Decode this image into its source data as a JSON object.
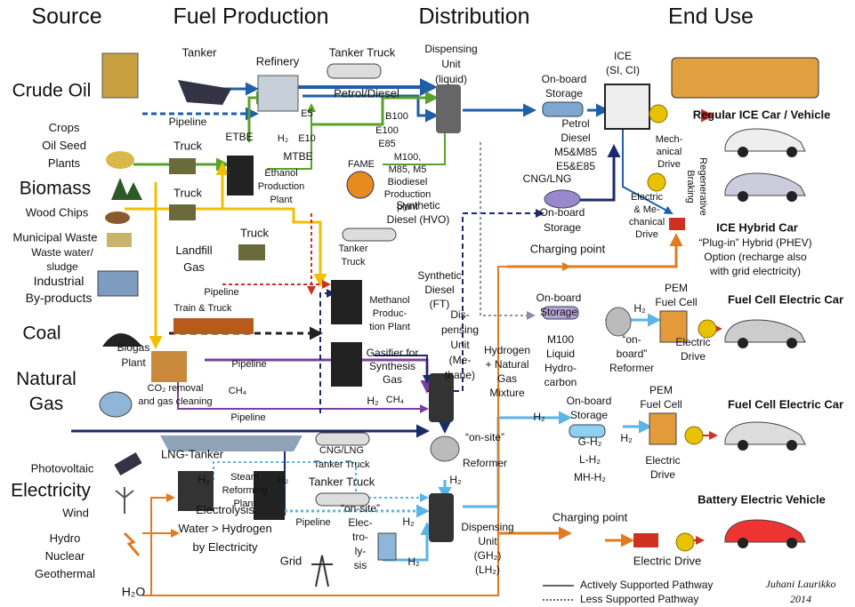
{
  "headers": [
    "Source",
    "Fuel Production",
    "Distribution",
    "End Use"
  ],
  "source": {
    "crude_oil": "Crude Oil",
    "crops": [
      "Crops",
      "Oil Seed",
      "Plants"
    ],
    "biomass": "Biomass",
    "wood_chips": "Wood Chips",
    "municipal_waste": "Municipal Waste",
    "waste_water": [
      "Waste water/",
      "sludge"
    ],
    "industrial": [
      "Industrial",
      "By-products"
    ],
    "coal": "Coal",
    "natural_gas": [
      "Natural",
      "Gas"
    ],
    "photovoltaic": "Photovoltaic",
    "electricity": "Electricity",
    "wind": "Wind",
    "hydro": [
      "Hydro",
      "Nuclear",
      "Geothermal"
    ],
    "water": "H₂O"
  },
  "production": {
    "tanker": "Tanker",
    "refinery": "Refinery",
    "pipeline_oil": "Pipeline",
    "truck_crops": "Truck",
    "etbe": "ETBE",
    "ethanol_plant": [
      "Ethanol",
      "Production",
      "Plant"
    ],
    "truck_wood": "Truck",
    "mtbe": "MTBE",
    "e5": "E5",
    "e10": "E10",
    "h2_refinery": "H₂",
    "tanker_truck": "Tanker Truck",
    "petrol_diesel": "Petrol/Diesel",
    "b100": "B100",
    "e100": [
      "E100",
      "E85"
    ],
    "biodiesel_plant": [
      "M100,",
      "M85, M5",
      "Biodiesel",
      "Production",
      "plant"
    ],
    "fame": "FAME",
    "hvo": [
      "Synthetic",
      "Diesel (HVO)"
    ],
    "truck_waste": "Truck",
    "tanker_truck_2": [
      "Tanker",
      "Truck"
    ],
    "landfill": [
      "Landfill",
      "Gas"
    ],
    "pipeline_industrial": "Pipeline",
    "train_truck": "Train & Truck",
    "methanol_plant": [
      "Methanol",
      "Produc-",
      "tion Plant"
    ],
    "ft_diesel": [
      "Synthetic",
      "Diesel",
      "(FT)"
    ],
    "biogas_plant": [
      "Biogas",
      "Plant"
    ],
    "co2_removal": [
      "CO₂ removal",
      "and gas cleaning"
    ],
    "ch4_biogas": "CH₄",
    "pipeline_biogas": "Pipeline",
    "gasifier": [
      "Gasifier for",
      "Synthesis",
      "Gas"
    ],
    "ch4_gasifier": "CH₄",
    "h2_gasifier": "H₂",
    "pipeline_gas": "Pipeline",
    "lng_tanker": "LNG-Tanker",
    "cng_lng_truck": [
      "CNG/LNG",
      "Tanker Truck"
    ],
    "steam_reforming": [
      "Steam",
      "Reforming",
      "Plant"
    ],
    "h2_electrolysis": "H₂",
    "h2_steam": "H₂",
    "tanker_truck_h2": "Tanker Truck",
    "pipeline_h2": "Pipeline",
    "electrolysis": [
      "Electrolysis",
      "Water > Hydrogen",
      "by Electricity"
    ],
    "grid": "Grid",
    "onsite_electrolysis": [
      "“on-site”",
      "Elec-",
      "tro-",
      "ly-",
      "sis"
    ]
  },
  "distribution": {
    "dispensing_liquid": [
      "Dispensing",
      "Unit",
      "(liquid)"
    ],
    "dispensing_methane": [
      "Dis-",
      "pensing",
      "Unit",
      "(Me-",
      "thane)"
    ],
    "h2_ng_mixture": [
      "Hydrogen",
      "+ Natural",
      "Gas",
      "Mixture"
    ],
    "onsite_reformer": [
      "“on-site”",
      "Reformer"
    ],
    "h2_reformer": "H₂",
    "h2_electro_out": "H₂",
    "h2_pipeline": "H₂",
    "dispensing_h2": [
      "Dispensing",
      "Unit",
      "(GH₂)",
      "(LH₂)"
    ],
    "h2_out": "H₂"
  },
  "end_use": {
    "onboard_liquid": [
      "On-board",
      "Storage"
    ],
    "liquid_fuels": [
      "Petrol",
      "Diesel",
      "M5&M85",
      "E5&E85"
    ],
    "cng_lng": "CNG/LNG",
    "onboard_gas": [
      "On-board",
      "Storage"
    ],
    "charging_1": "Charging point",
    "onboard_m100": [
      "On-board",
      "Storage"
    ],
    "m100": [
      "M100",
      "Liquid",
      "Hydro-",
      "carbon"
    ],
    "onboard_reformer": [
      "“on-",
      "board”",
      "Reformer"
    ],
    "h2_fc1": "H₂",
    "pem_1": [
      "PEM",
      "Fuel Cell"
    ],
    "drive_fc1": [
      "Electric",
      "Drive"
    ],
    "fcev_1": "Fuel Cell Electric Car",
    "onboard_h2": [
      "On-board",
      "Storage"
    ],
    "h2_types": [
      "G-H₂",
      "L-H₂",
      "MH-H₂"
    ],
    "h2_fc2": "H₂",
    "pem_2": [
      "PEM",
      "Fuel Cell"
    ],
    "drive_fc2": [
      "Electric",
      "Drive"
    ],
    "fcev_2": "Fuel Cell Electric Car",
    "charging_2": "Charging point",
    "drive_bev": "Electric Drive",
    "bev": "Battery Electric Vehicle",
    "ice": [
      "ICE",
      "(SI, CI)"
    ],
    "ice_car": "Regular ICE Car / Vehicle",
    "mech_drive": [
      "Mech-",
      "anical",
      "Drive"
    ],
    "regen": [
      "Regenerative",
      "Braking"
    ],
    "hybrid_drive": [
      "Electric",
      "& Me-",
      "chanical",
      "Drive"
    ],
    "hybrid_car": "ICE Hybrid Car",
    "phev": [
      "“Plug-in” Hybrid (PHEV)",
      "Option (recharge also",
      "with grid electricity)"
    ]
  },
  "legend": {
    "active": "Actively Supported Pathway",
    "less": "Less Supported Pathway"
  },
  "signature": [
    "Juhani Laurikko",
    "2014"
  ]
}
